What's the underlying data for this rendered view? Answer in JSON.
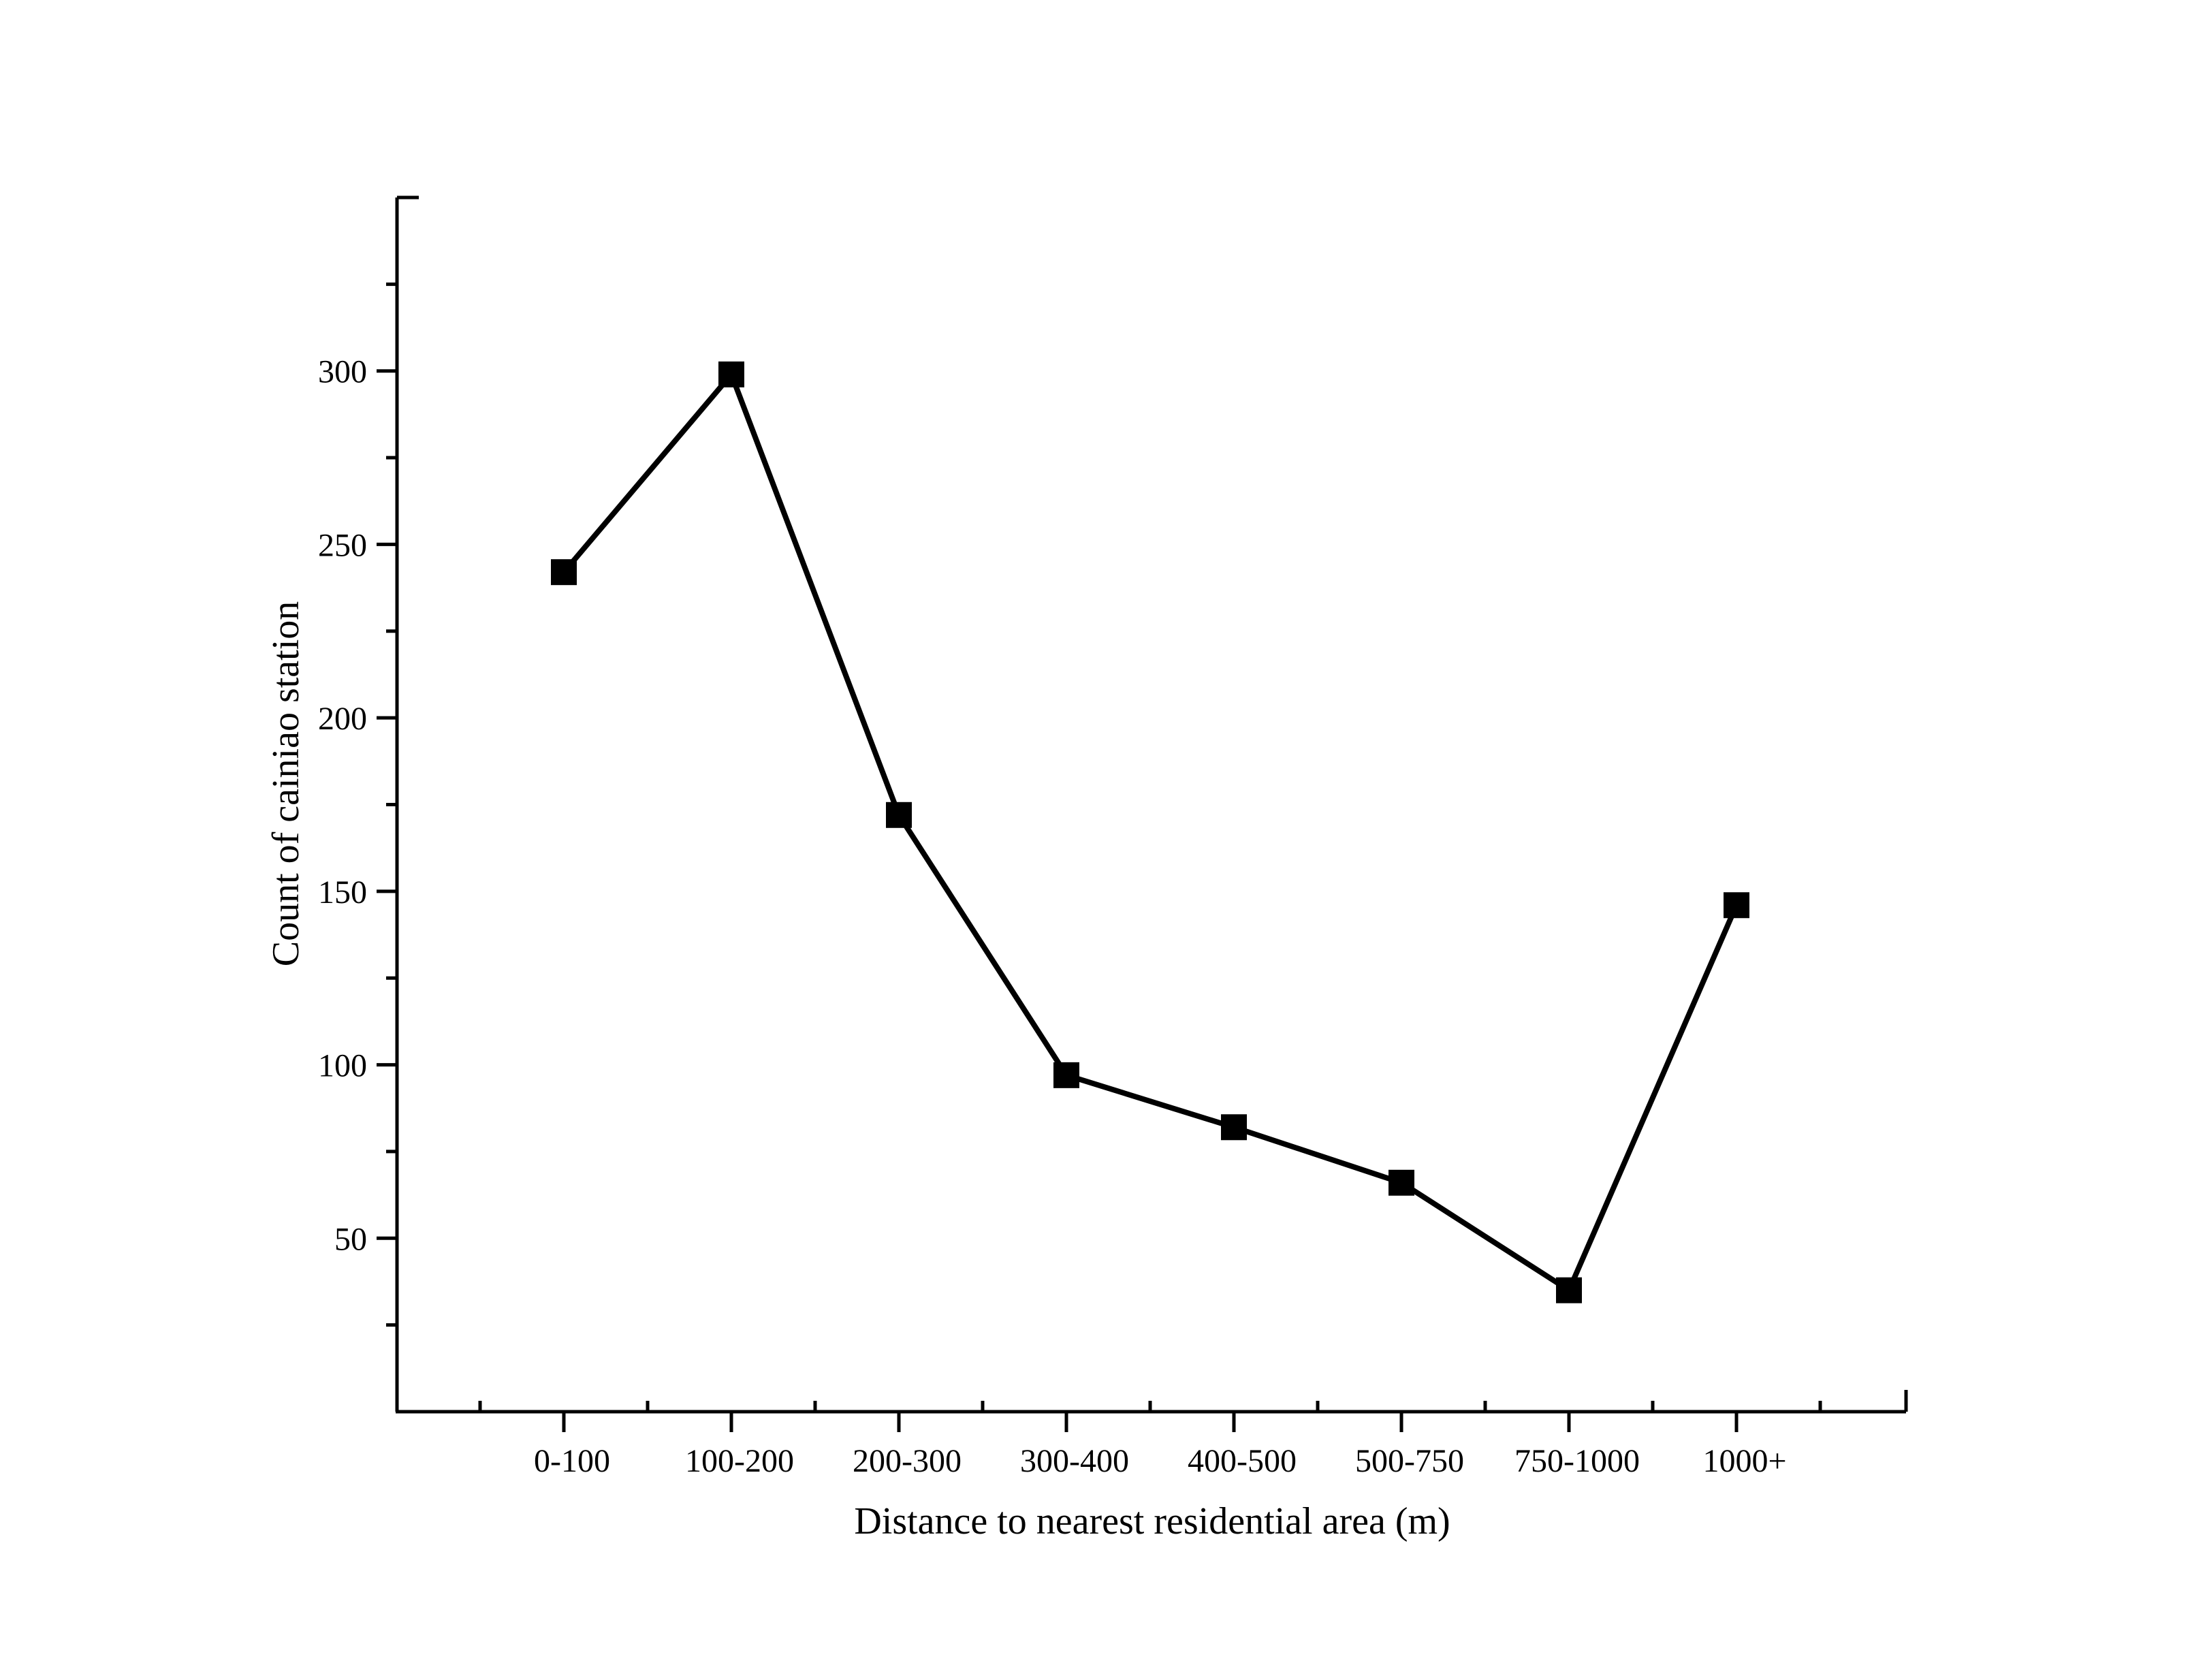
{
  "chart_data": {
    "type": "line",
    "title": "",
    "xlabel": "Distance to nearest residential area (m)",
    "ylabel": "Count of cainiao station",
    "categories": [
      "0-100",
      "100-200",
      "200-300",
      "300-400",
      "400-500",
      "500-750",
      "750-1000",
      "1000+"
    ],
    "series": [
      {
        "name": "Count of cainiao station",
        "values": [
          242,
          299,
          172,
          97,
          82,
          66,
          35,
          146
        ]
      }
    ],
    "ylim": [
      0,
      350
    ],
    "yticks": [
      50,
      100,
      150,
      200,
      250,
      300
    ],
    "ytick_labels": [
      "50",
      "100",
      "150",
      "200",
      "250",
      "300"
    ],
    "grid": false,
    "legend": "none",
    "line_color": "#000000",
    "marker": "square"
  }
}
